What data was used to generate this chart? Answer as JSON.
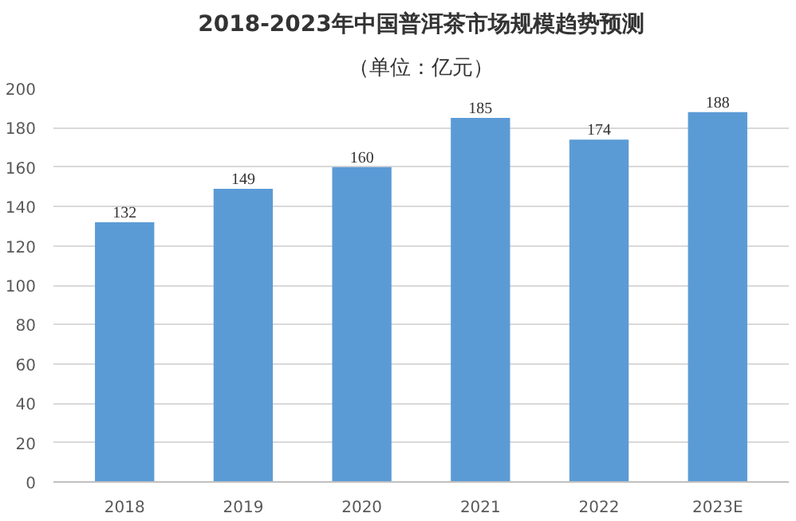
{
  "chart_data": {
    "type": "bar",
    "title": "2018-2023年中国普洱茶市场规模趋势预测",
    "subtitle": "（单位：亿元）",
    "categories": [
      "2018",
      "2019",
      "2020",
      "2021",
      "2022",
      "2023E"
    ],
    "values": [
      132,
      149,
      160,
      185,
      174,
      188
    ],
    "color": "#5b9bd5",
    "ylim": [
      0,
      200
    ],
    "yticks": [
      0,
      20,
      40,
      60,
      80,
      100,
      120,
      140,
      160,
      180,
      200
    ],
    "grid": "y",
    "data_labels": true
  }
}
